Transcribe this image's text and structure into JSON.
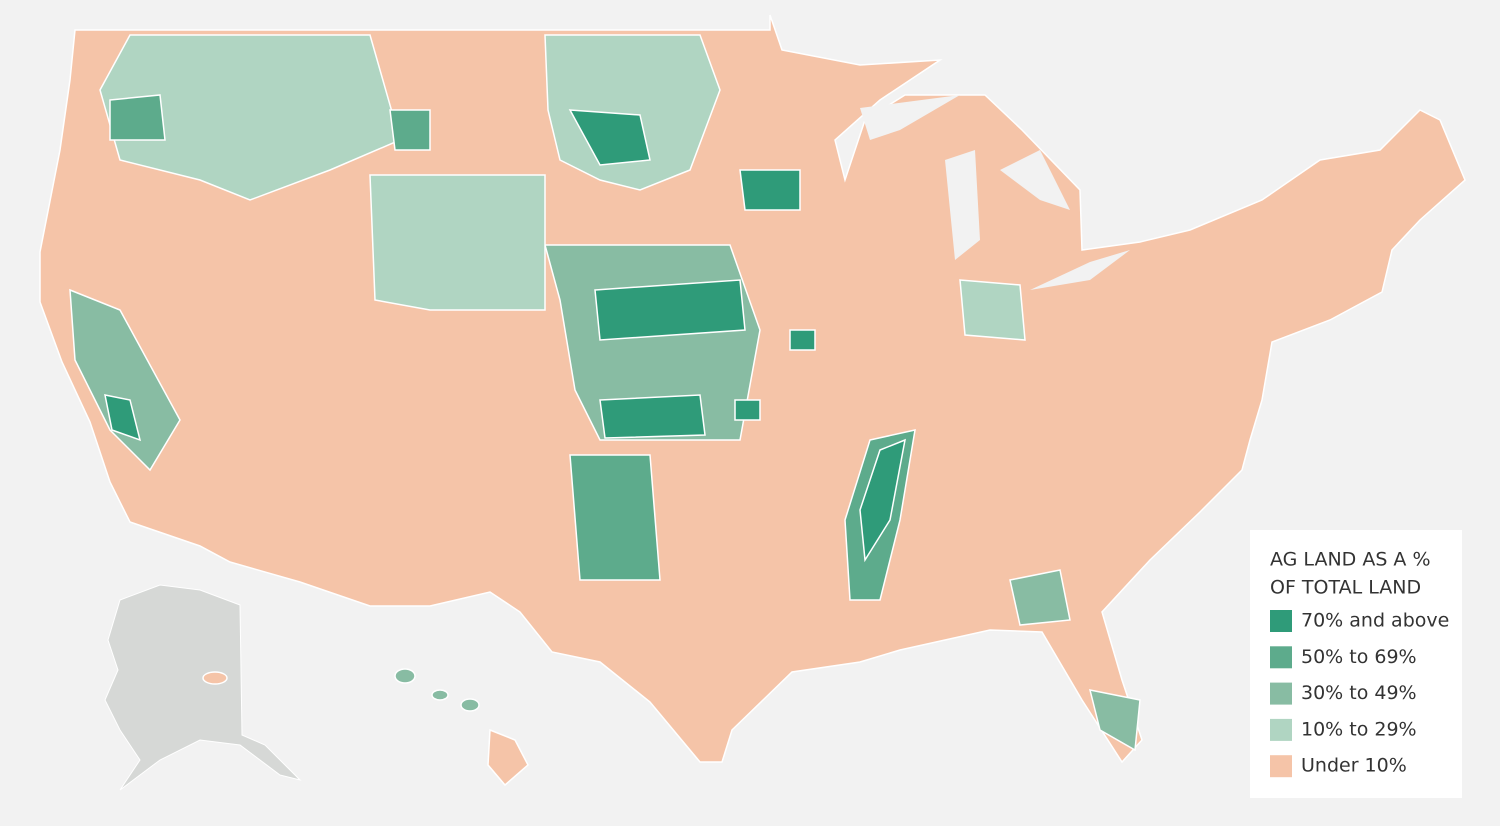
{
  "legend": {
    "title_lines": [
      "AG LAND AS A %",
      "OF TOTAL LAND"
    ],
    "entries": [
      {
        "label": "70% and above",
        "color": "#2f9b79"
      },
      {
        "label": "50% to 69%",
        "color": "#5dab8c"
      },
      {
        "label": "30% to 49%",
        "color": "#88bca3"
      },
      {
        "label": "10% to 29%",
        "color": "#b0d5c2"
      },
      {
        "label": "Under 10%",
        "color": "#f5c4a8"
      }
    ]
  }
}
